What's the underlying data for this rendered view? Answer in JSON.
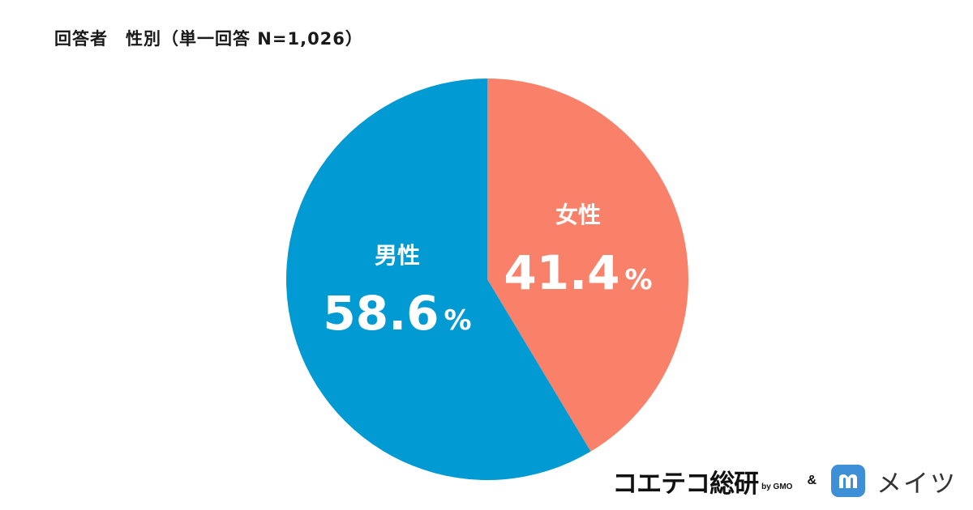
{
  "title": "回答者　性別（単一回答 N=1,026）",
  "chart_data": {
    "type": "pie",
    "title": "回答者　性別（単一回答 N=1,026）",
    "slices": [
      {
        "label": "女性",
        "value": 41.4,
        "value_text": "41.4",
        "unit": "%",
        "color": "#fa8169"
      },
      {
        "label": "男性",
        "value": 58.6,
        "value_text": "58.6",
        "unit": "%",
        "color": "#029ad3"
      }
    ],
    "start_angle_deg": 0,
    "direction": "clockwise"
  },
  "footer": {
    "brand_name": "コエテコ総研",
    "brand_suffix": "by GMO",
    "ampersand": "&",
    "partner_name": "メイツ",
    "partner_logo_color": "#3d8fd6"
  }
}
